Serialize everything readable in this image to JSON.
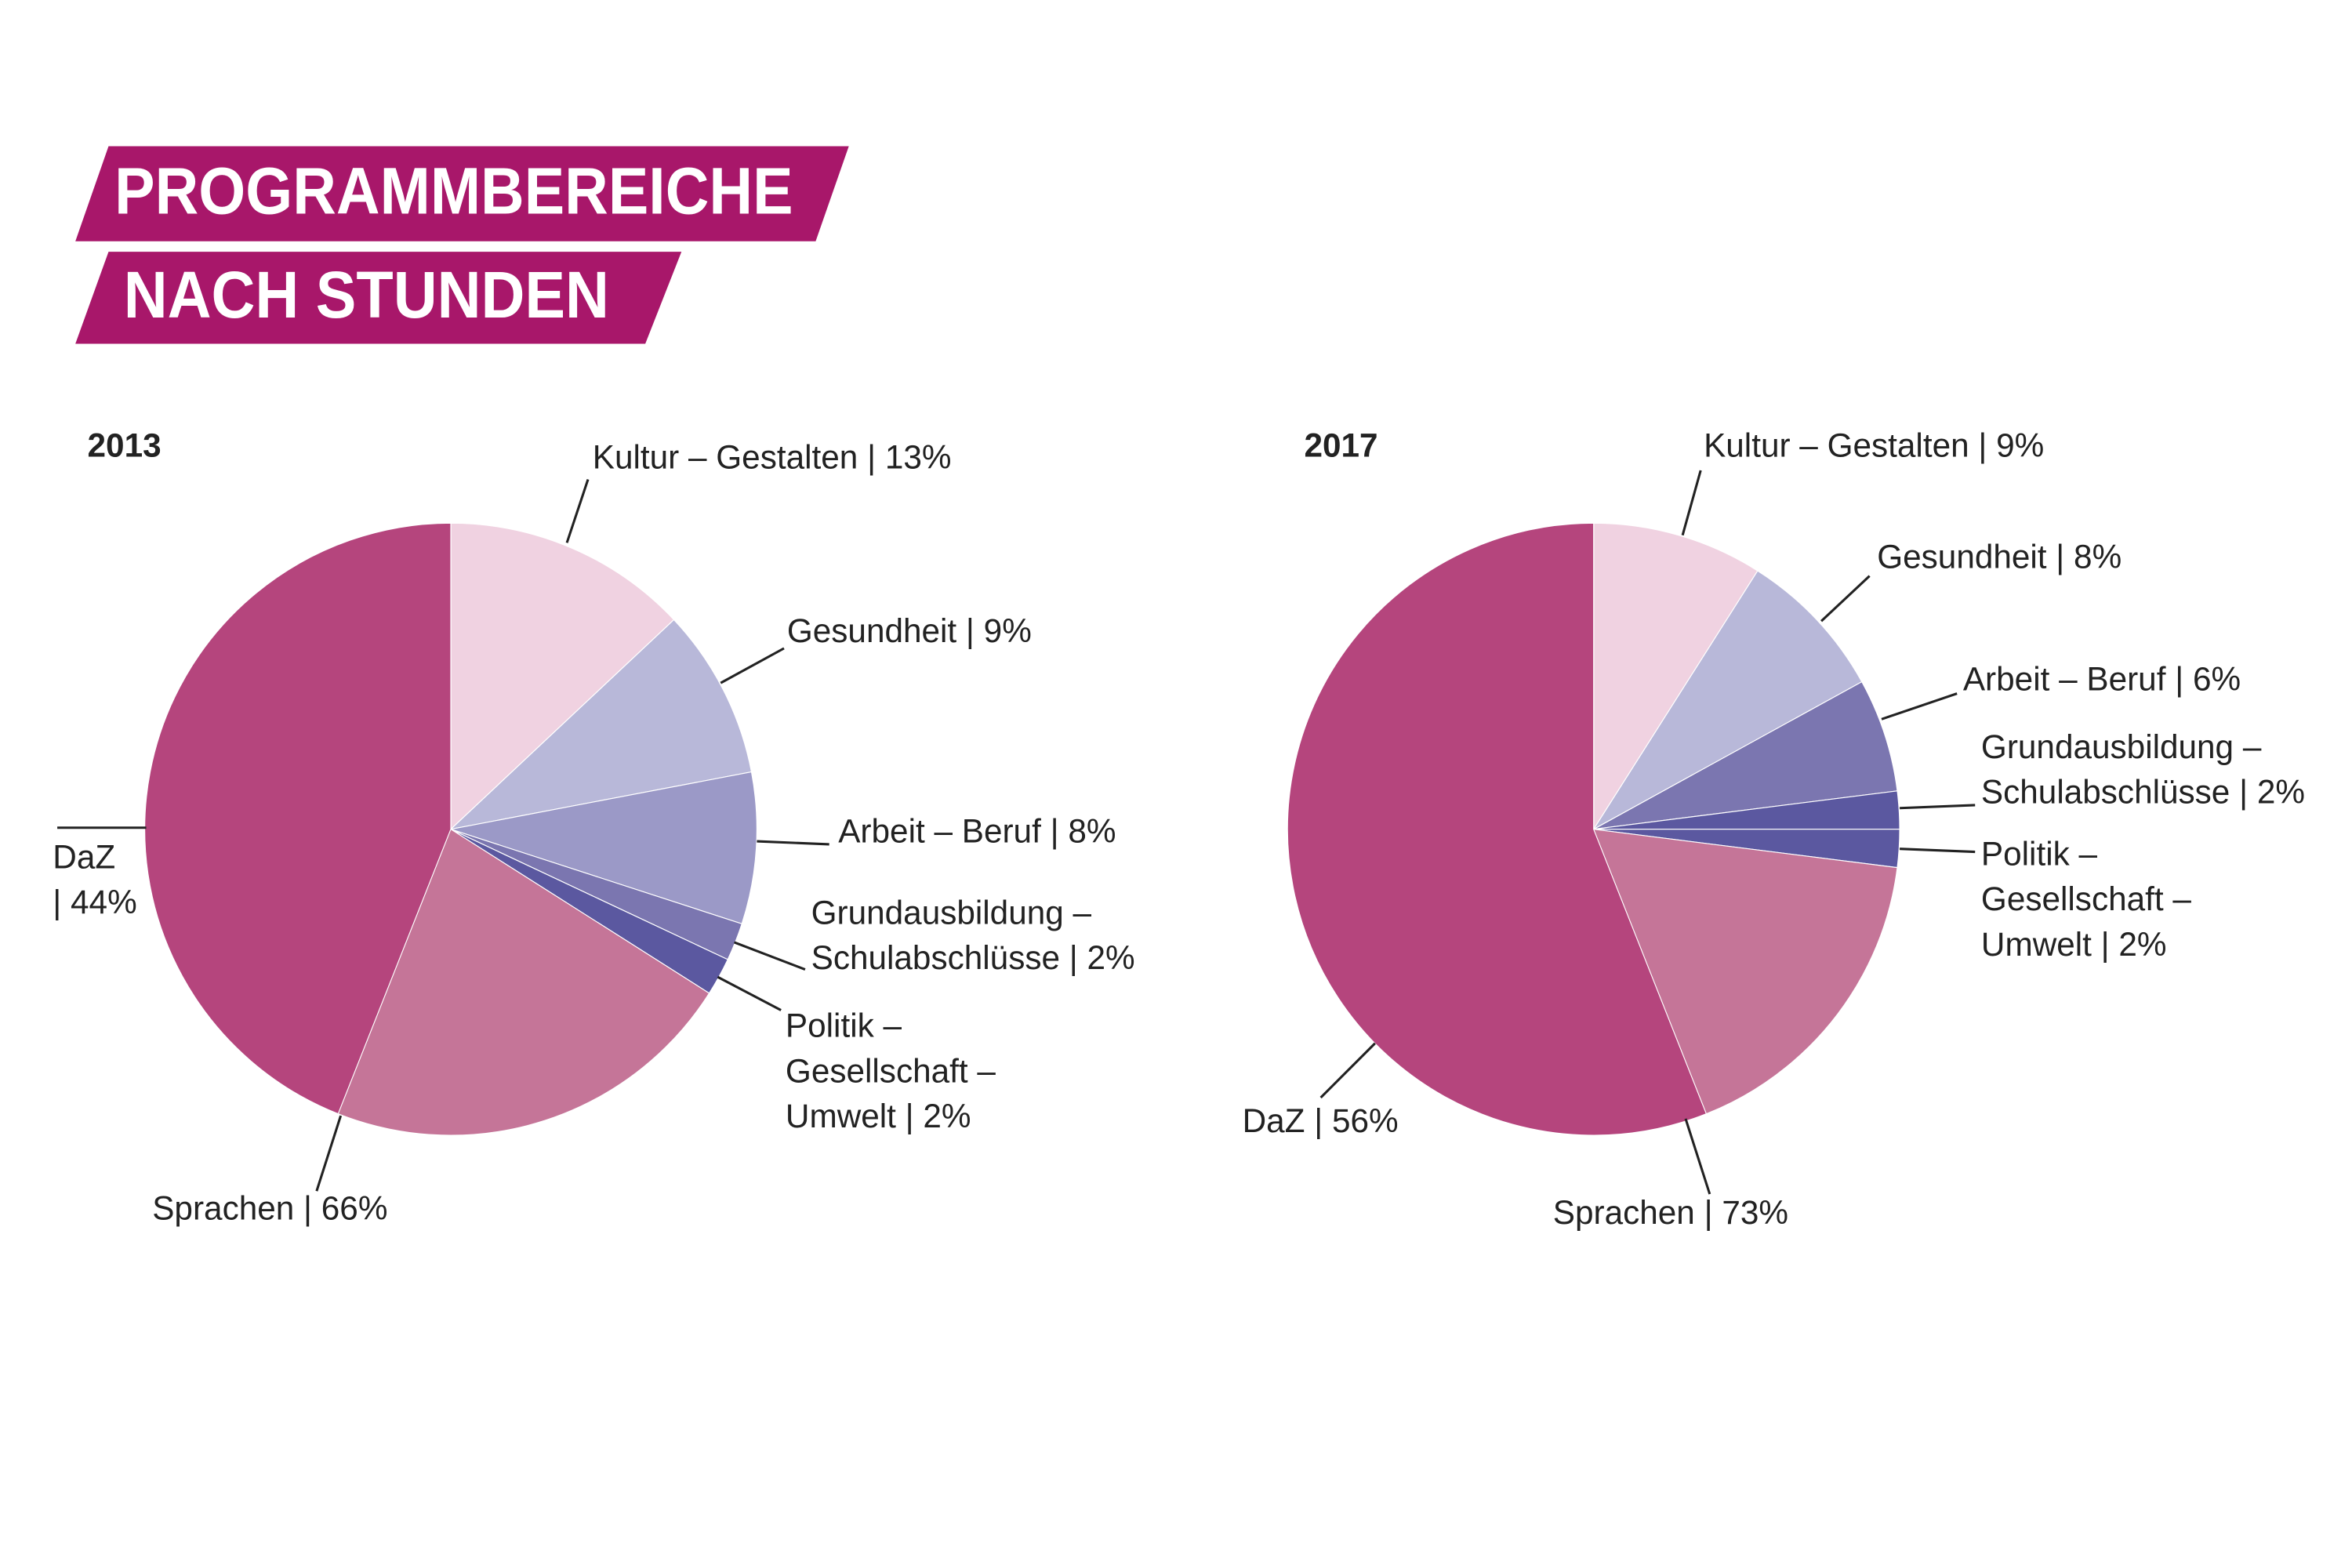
{
  "title": [
    "PROGRAMMBEREICHE",
    "NACH STUNDEN"
  ],
  "chart_data": [
    {
      "type": "pie",
      "title": "2013",
      "labels": [
        [
          "Kultur – Gestalten | 13%"
        ],
        [
          "Gesundheit | 9%"
        ],
        [
          "Arbeit – Beruf | 8%"
        ],
        [
          "Grundausbildung –",
          "Schulabschlüsse | 2%"
        ],
        [
          "Politik –",
          "Gesellschaft –",
          "Umwelt | 2%"
        ],
        [
          "Sprachen | 66%"
        ],
        [
          "DaZ",
          "| 44%"
        ]
      ],
      "values": [
        13,
        9,
        8,
        2,
        2,
        66,
        44
      ],
      "colors": [
        "#f0d2e1",
        "#b8b8d9",
        "#9b99c7",
        "#7b76b0",
        "#5b58a0",
        "#c57598",
        "#b5457d"
      ]
    },
    {
      "type": "pie",
      "title": "2017",
      "labels": [
        [
          "Kultur – Gestalten | 9%"
        ],
        [
          "Gesundheit | 8%"
        ],
        [
          "Arbeit – Beruf | 6%"
        ],
        [
          "Grundausbildung –",
          "Schulabschlüsse | 2%"
        ],
        [
          "Politik –",
          "Gesellschaft –",
          "Umwelt | 2%"
        ],
        [
          "Sprachen | 73%"
        ],
        [
          "DaZ | 56%"
        ]
      ],
      "values": [
        9,
        8,
        6,
        2,
        2,
        73,
        56
      ],
      "colors": [
        "#f0d2e1",
        "#b8b8d9",
        "#7b76b0",
        "#5b58a0",
        "#5b58a0",
        "#c57598",
        "#b5457d"
      ]
    }
  ]
}
